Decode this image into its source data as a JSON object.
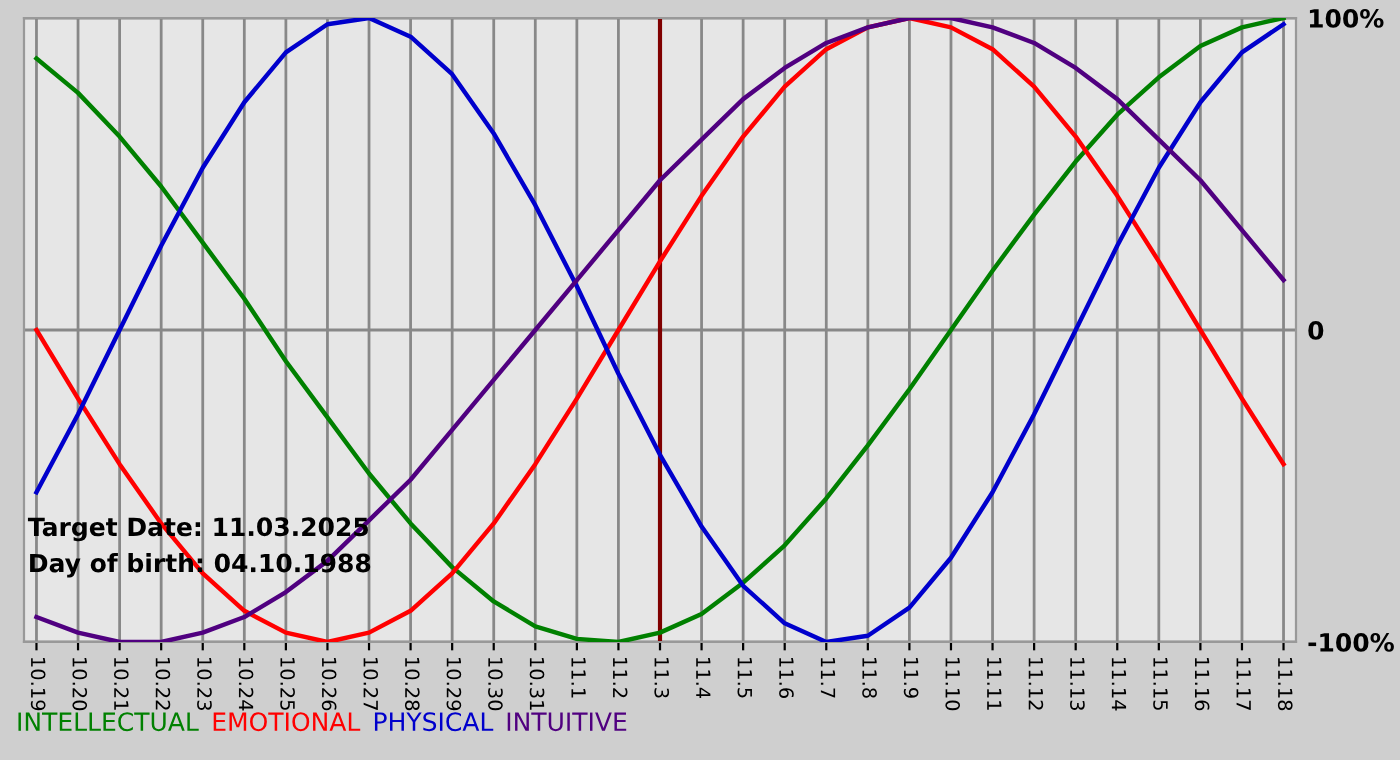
{
  "chart_data": {
    "type": "line",
    "categories": [
      "10.19",
      "10.20",
      "10.21",
      "10.22",
      "10.23",
      "10.24",
      "10.25",
      "10.26",
      "10.27",
      "10.28",
      "10.29",
      "10.30",
      "10.31",
      "11.1",
      "11.2",
      "11.3",
      "11.4",
      "11.5",
      "11.6",
      "11.7",
      "11.8",
      "11.9",
      "11.10",
      "11.11",
      "11.12",
      "11.13",
      "11.14",
      "11.15",
      "11.16",
      "11.17",
      "11.18"
    ],
    "series": [
      {
        "name": "INTELLECTUAL",
        "color": "#008000",
        "values": [
          87,
          76,
          62,
          46,
          28,
          10,
          -10,
          -28,
          -46,
          -62,
          -76,
          -87,
          -95,
          -99,
          -100,
          -97,
          -91,
          -81,
          -69,
          -54,
          -37,
          -19,
          0,
          19,
          37,
          54,
          69,
          81,
          91,
          97,
          100
        ]
      },
      {
        "name": "EMOTIONAL",
        "color": "#ff0000",
        "values": [
          0,
          -22,
          -43,
          -62,
          -78,
          -90,
          -97,
          -100,
          -97,
          -90,
          -78,
          -62,
          -43,
          -22,
          0,
          22,
          43,
          62,
          78,
          90,
          97,
          100,
          97,
          90,
          78,
          62,
          43,
          22,
          0,
          -22,
          -43
        ]
      },
      {
        "name": "PHYSICAL",
        "color": "#0000cc",
        "values": [
          -52,
          -27,
          0,
          27,
          52,
          73,
          89,
          98,
          100,
          94,
          82,
          63,
          40,
          14,
          -14,
          -40,
          -63,
          -82,
          -94,
          -100,
          -98,
          -89,
          -73,
          -52,
          -27,
          0,
          27,
          52,
          73,
          89,
          98
        ]
      },
      {
        "name": "INTUITIVE",
        "color": "#500080",
        "values": [
          -92,
          -97,
          -100,
          -100,
          -97,
          -92,
          -84,
          -74,
          -61,
          -48,
          -32,
          -16,
          0,
          16,
          32,
          48,
          61,
          74,
          84,
          92,
          97,
          100,
          100,
          97,
          92,
          84,
          74,
          61,
          48,
          32,
          16
        ]
      }
    ],
    "ylim": [
      -100,
      100
    ],
    "yticks": [
      {
        "value": 100,
        "label": "100%"
      },
      0,
      {
        "value": -100,
        "label": "-100%"
      }
    ],
    "grid": true,
    "legend": "bottom",
    "ref_lines": [
      {
        "axis": "x",
        "value": "11.3",
        "color": "#800000"
      }
    ],
    "annotations": [
      "Target Date: 11.03.2025",
      "Day of birth: 04.10.1988"
    ]
  }
}
